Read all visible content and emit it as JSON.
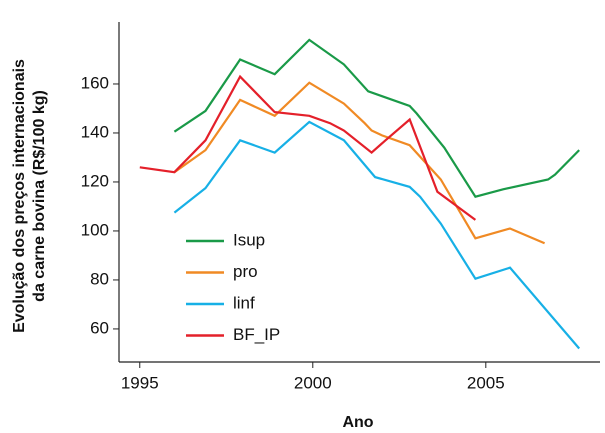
{
  "chart_data": {
    "type": "line",
    "xlabel": "Ano",
    "ylabel": [
      "Evolução dos preços internacionais",
      "da carne bovina (R$/100 kg)"
    ],
    "xlim": [
      1994.4,
      2008.3
    ],
    "ylim": [
      46.5,
      185.3
    ],
    "xticks": [
      1995,
      2000,
      2005
    ],
    "yticks": [
      60,
      80,
      100,
      120,
      140,
      160
    ],
    "legend": "lower-left",
    "series": [
      {
        "name": "Isup",
        "color": "#1a9a48",
        "x": [
          1996,
          1996.9,
          1997.9,
          1998.9,
          1999.9,
          2000.9,
          2001.6,
          2002,
          2002.8,
          2003,
          2003.8,
          2004.7,
          2005.5,
          2006.8,
          2007,
          2007.7
        ],
        "values": [
          140.5,
          149,
          170,
          164,
          178,
          168,
          157,
          155,
          151,
          148,
          134,
          114,
          117,
          121,
          123,
          133
        ]
      },
      {
        "name": "pro",
        "color": "#f08a24",
        "x": [
          1996,
          1996.9,
          1997.9,
          1998.9,
          1999.9,
          2000.9,
          2001.5,
          2001.7,
          2002,
          2002.8,
          2003.7,
          2004.7,
          2005.7,
          2006.7
        ],
        "values": [
          124,
          133,
          153.5,
          147,
          160.5,
          152,
          144,
          141,
          139,
          135,
          121,
          97,
          101,
          95
        ]
      },
      {
        "name": "linf",
        "color": "#17b0e6",
        "x": [
          1996,
          1996.9,
          1997.9,
          1998.9,
          1999.9,
          2000.9,
          2001.8,
          2002.8,
          2003.1,
          2003.7,
          2004.7,
          2005.7,
          2007.7
        ],
        "values": [
          107.5,
          117.5,
          137,
          132,
          144.5,
          137,
          122,
          118,
          114,
          103,
          80.5,
          85,
          52
        ]
      },
      {
        "name": "BF_IP",
        "color": "#e4202a",
        "x": [
          1995,
          1996,
          1996.9,
          1997.9,
          1998.9,
          1999.9,
          2000.5,
          2000.9,
          2001.7,
          2002.1,
          2002.8,
          2003.6,
          2004.7
        ],
        "values": [
          126,
          124,
          137,
          163,
          148.5,
          147,
          144,
          141,
          132,
          137,
          145.5,
          116,
          104.5
        ]
      }
    ]
  }
}
